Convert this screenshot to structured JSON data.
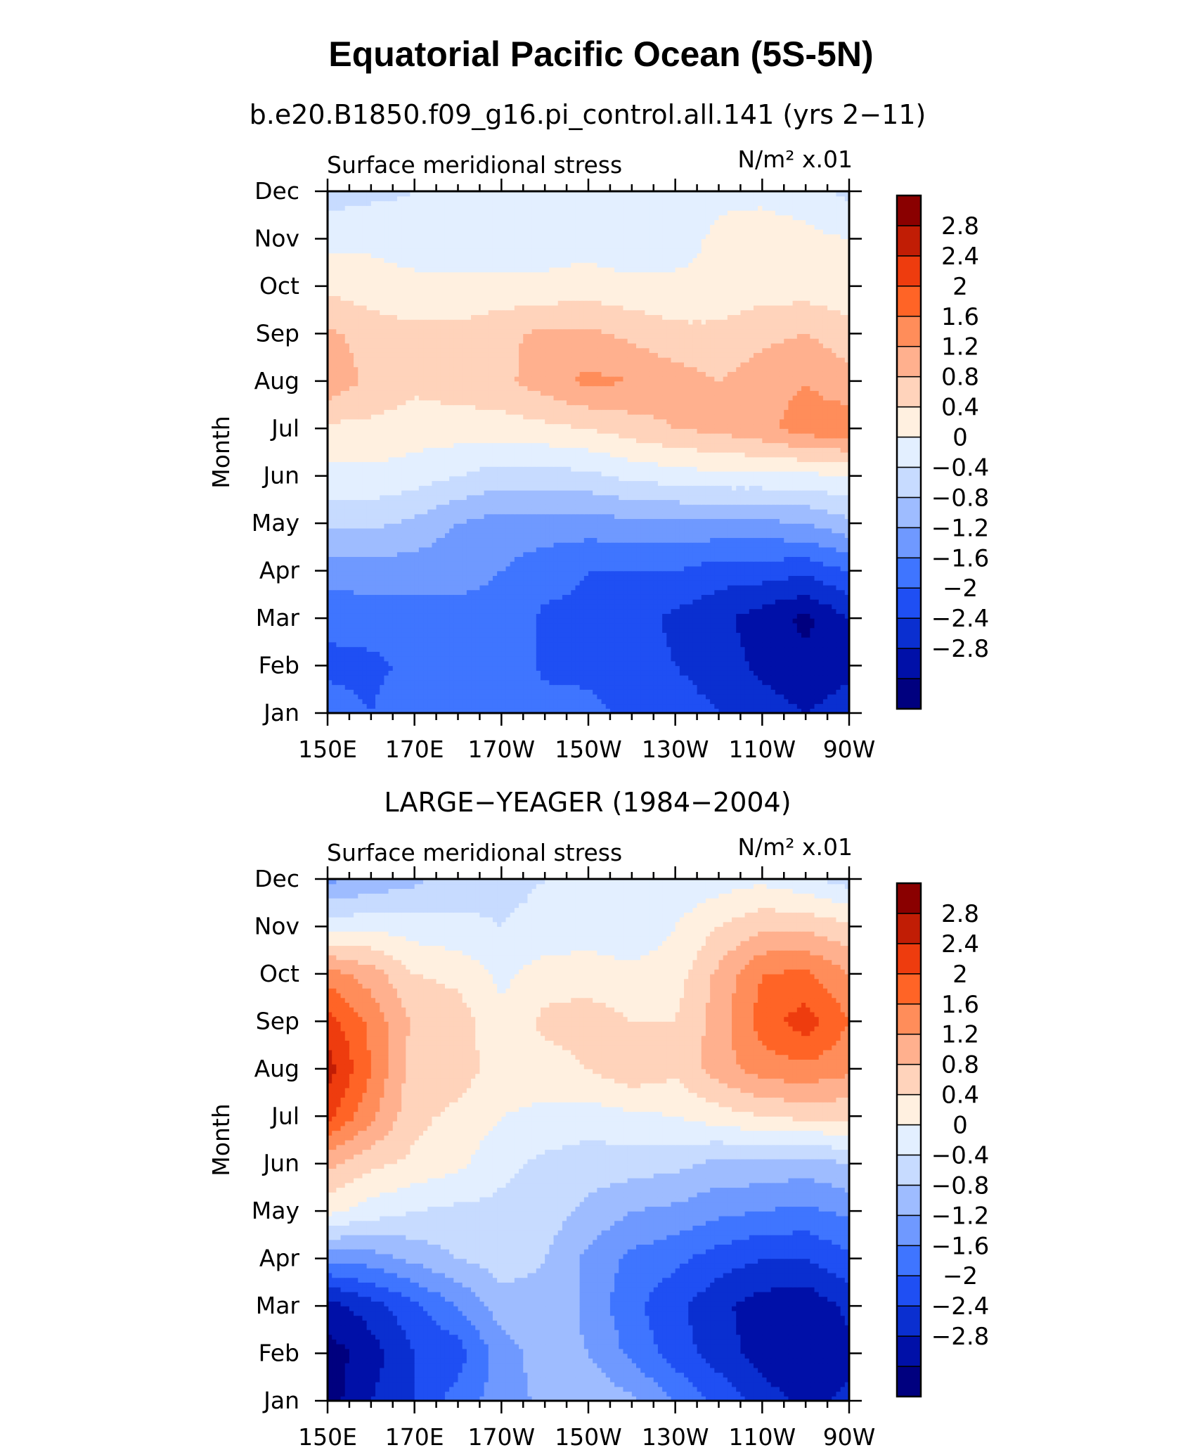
{
  "figure": {
    "title": "Equatorial Pacific Ocean (5S-5N)"
  },
  "chart_data": [
    {
      "type": "heatmap",
      "title": "b.e20.B1850.f09_g16.pi_control.all.141 (yrs 2−11)",
      "left_string": "Surface meridional stress",
      "right_string": "N/m² x.01",
      "xlabel": "",
      "ylabel": "Month",
      "x_ticks": [
        "150E",
        "170E",
        "170W",
        "150W",
        "130W",
        "110W",
        "90W"
      ],
      "x": [
        150,
        160,
        170,
        180,
        190,
        200,
        210,
        220,
        230,
        240,
        250,
        260,
        270
      ],
      "y_ticks": [
        "Jan",
        "Feb",
        "Mar",
        "Apr",
        "May",
        "Jun",
        "Jul",
        "Aug",
        "Sep",
        "Oct",
        "Nov",
        "Dec"
      ],
      "y": [
        "Jan",
        "Feb",
        "Mar",
        "Apr",
        "May",
        "Jun",
        "Jul",
        "Aug",
        "Sep",
        "Oct",
        "Nov",
        "Dec"
      ],
      "z": [
        [
          -1.4,
          -1.6,
          -1.3,
          -1.2,
          -1.2,
          -1.4,
          -1.5,
          -1.7,
          -1.8,
          -2.0,
          -2.2,
          -2.4,
          -2.2
        ],
        [
          -1.7,
          -1.7,
          -1.5,
          -1.2,
          -1.3,
          -1.7,
          -1.7,
          -1.8,
          -2.0,
          -2.2,
          -2.5,
          -2.7,
          -2.5
        ],
        [
          -1.5,
          -1.4,
          -1.4,
          -1.3,
          -1.3,
          -1.7,
          -1.7,
          -1.8,
          -2.1,
          -2.3,
          -2.6,
          -2.9,
          -2.4
        ],
        [
          -1.0,
          -1.0,
          -1.0,
          -1.1,
          -1.2,
          -1.4,
          -1.6,
          -1.6,
          -1.6,
          -1.8,
          -1.8,
          -1.9,
          -1.6
        ],
        [
          -0.3,
          -0.3,
          -0.5,
          -0.8,
          -1.0,
          -1.0,
          -1.0,
          -0.9,
          -0.9,
          -0.9,
          -0.9,
          -0.8,
          -0.5
        ],
        [
          0.3,
          0.3,
          0.2,
          0.0,
          -0.2,
          -0.2,
          -0.1,
          0.1,
          0.2,
          0.3,
          0.3,
          0.3,
          0.4
        ],
        [
          0.7,
          0.7,
          0.6,
          0.6,
          0.6,
          0.7,
          0.8,
          1.0,
          1.2,
          1.3,
          1.5,
          1.8,
          1.9
        ],
        [
          1.5,
          1.1,
          0.9,
          1.0,
          1.1,
          1.4,
          1.7,
          1.6,
          1.4,
          1.2,
          1.4,
          1.6,
          1.3
        ],
        [
          1.3,
          1.0,
          0.9,
          0.9,
          1.1,
          1.3,
          1.3,
          1.1,
          0.9,
          0.9,
          1.1,
          1.2,
          1.0
        ],
        [
          0.7,
          0.6,
          0.5,
          0.5,
          0.5,
          0.5,
          0.6,
          0.5,
          0.5,
          0.5,
          0.6,
          0.6,
          0.5
        ],
        [
          0.3,
          0.3,
          0.2,
          0.2,
          0.2,
          0.2,
          0.2,
          0.1,
          0.2,
          0.5,
          0.6,
          0.5,
          0.4
        ],
        [
          -0.2,
          -0.1,
          0.0,
          0.0,
          0.1,
          0.1,
          0.1,
          0.1,
          0.1,
          0.3,
          0.3,
          0.2,
          -0.1
        ]
      ]
    },
    {
      "type": "heatmap",
      "title": "LARGE−YEAGER (1984−2004)",
      "left_string": "Surface meridional stress",
      "right_string": "N/m² x.01",
      "xlabel": "",
      "ylabel": "Month",
      "x_ticks": [
        "150E",
        "170E",
        "170W",
        "150W",
        "130W",
        "110W",
        "90W"
      ],
      "x": [
        150,
        160,
        170,
        180,
        190,
        200,
        210,
        220,
        230,
        240,
        250,
        260,
        270
      ],
      "y_ticks": [
        "Jan",
        "Feb",
        "Mar",
        "Apr",
        "May",
        "Jun",
        "Jul",
        "Aug",
        "Sep",
        "Oct",
        "Nov",
        "Dec"
      ],
      "y": [
        "Jan",
        "Feb",
        "Mar",
        "Apr",
        "May",
        "Jun",
        "Jul",
        "Aug",
        "Sep",
        "Oct",
        "Nov",
        "Dec"
      ],
      "z": [
        [
          -3.0,
          -2.4,
          -2.0,
          -1.4,
          -1.0,
          -0.7,
          -0.5,
          -0.7,
          -1.2,
          -1.7,
          -2.2,
          -2.5,
          -2.3
        ],
        [
          -3.0,
          -2.6,
          -2.0,
          -1.8,
          -1.0,
          -0.6,
          -0.8,
          -1.3,
          -1.8,
          -2.2,
          -2.6,
          -2.8,
          -2.5
        ],
        [
          -2.6,
          -2.2,
          -1.7,
          -1.2,
          -0.6,
          -0.5,
          -0.9,
          -1.5,
          -1.9,
          -2.3,
          -2.6,
          -2.7,
          -2.3
        ],
        [
          -1.1,
          -1.0,
          -0.7,
          -0.4,
          -0.2,
          -0.4,
          -0.9,
          -1.3,
          -1.5,
          -1.8,
          -2.0,
          -2.0,
          -1.7
        ],
        [
          0.5,
          0.2,
          0.0,
          -0.1,
          -0.1,
          -0.2,
          -0.5,
          -0.8,
          -0.9,
          -1.1,
          -1.2,
          -1.3,
          -1.1
        ],
        [
          1.3,
          0.9,
          0.7,
          0.5,
          0.1,
          -0.1,
          -0.2,
          -0.2,
          -0.3,
          -0.5,
          -0.5,
          -0.6,
          -0.4
        ],
        [
          2.5,
          1.7,
          0.9,
          0.7,
          0.4,
          0.3,
          0.2,
          0.3,
          0.4,
          0.6,
          0.8,
          0.9,
          0.9
        ],
        [
          3.0,
          2.0,
          1.0,
          1.0,
          0.6,
          0.6,
          0.8,
          1.1,
          0.9,
          1.4,
          1.8,
          1.9,
          1.7
        ],
        [
          2.6,
          1.9,
          1.1,
          1.0,
          0.5,
          0.9,
          1.0,
          0.8,
          0.8,
          1.4,
          2.2,
          2.6,
          2.0
        ],
        [
          1.8,
          1.4,
          0.8,
          0.7,
          0.3,
          0.6,
          0.6,
          0.5,
          0.6,
          1.3,
          2.0,
          2.1,
          1.6
        ],
        [
          0.2,
          0.3,
          0.2,
          0.1,
          0.0,
          0.1,
          0.2,
          0.1,
          0.4,
          0.8,
          1.1,
          1.1,
          0.9
        ],
        [
          -0.9,
          -0.7,
          -0.5,
          -0.2,
          -0.1,
          0.0,
          0.0,
          0.1,
          0.1,
          0.2,
          0.3,
          0.1,
          -0.2
        ]
      ]
    }
  ],
  "colorbar": {
    "labels": [
      "2.8",
      "2.4",
      "2",
      "1.6",
      "1.2",
      "0.8",
      "0.4",
      "0",
      "−0.4",
      "−0.8",
      "−1.2",
      "−1.6",
      "−2",
      "−2.4",
      "−2.8"
    ],
    "levels": [
      -2.8,
      -2.4,
      -2.0,
      -1.6,
      -1.2,
      -0.8,
      -0.4,
      0,
      0.4,
      0.8,
      1.2,
      1.6,
      2.0,
      2.4,
      2.8
    ],
    "colors": [
      "#00007f",
      "#0010a8",
      "#0a2fd0",
      "#1f4ff3",
      "#3f75ff",
      "#6f99ff",
      "#9ebcff",
      "#c7dbff",
      "#e3efff",
      "#fff0e0",
      "#ffd3bb",
      "#ffb08e",
      "#ff8d5a",
      "#ff6426",
      "#ee3c0e",
      "#c11d05",
      "#8a0000"
    ]
  }
}
